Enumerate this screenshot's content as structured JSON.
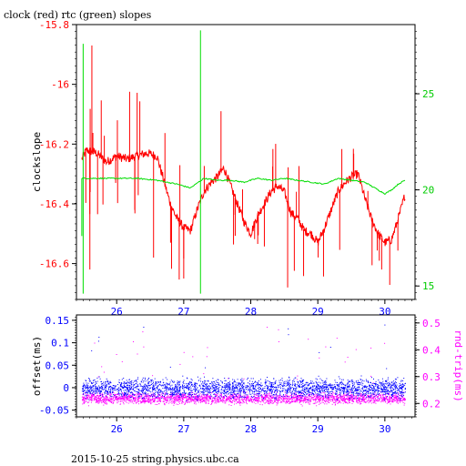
{
  "title": "clock (red) rtc (green) slopes",
  "footer": "2015-10-25 string.physics.ubc.ca",
  "colors": {
    "clock": "#ff0000",
    "rtc": "#00dd00",
    "offset": "#0000ff",
    "rtt": "#ff00ff",
    "axis_left_top": "#ff0000",
    "axis_right_top": "#00cc00",
    "axis_left_bottom": "#0000ff",
    "axis_right_bottom": "#ff00ff",
    "x_ticks": "#0000ff"
  },
  "chart_data": [
    {
      "type": "line",
      "title": "clock (red) rtc (green) slopes",
      "ylabel": "clockslope",
      "xlim": [
        25.4,
        30.45
      ],
      "x_ticks": [
        "26",
        "27",
        "28",
        "29",
        "30"
      ],
      "ylim_left": [
        -16.72,
        -15.8
      ],
      "y_ticks_left": [
        "-15.8",
        "-16",
        "-16.2",
        "-16.4",
        "-16.6"
      ],
      "ylim_right": [
        14.3,
        28.6
      ],
      "y_ticks_right": [
        "15",
        "20",
        "25"
      ],
      "series": [
        {
          "name": "clock",
          "axis": "left",
          "x": [
            25.48,
            25.55,
            25.7,
            25.85,
            26.0,
            26.15,
            26.3,
            26.45,
            26.6,
            26.7,
            26.8,
            26.9,
            27.0,
            27.1,
            27.2,
            27.3,
            27.4,
            27.5,
            27.6,
            27.7,
            27.8,
            27.9,
            28.0,
            28.1,
            28.2,
            28.3,
            28.4,
            28.5,
            28.6,
            28.7,
            28.8,
            28.9,
            29.0,
            29.1,
            29.2,
            29.3,
            29.4,
            29.5,
            29.6,
            29.7,
            29.8,
            29.9,
            30.0,
            30.1,
            30.2,
            30.3
          ],
          "y": [
            -16.25,
            -16.22,
            -16.23,
            -16.26,
            -16.24,
            -16.25,
            -16.24,
            -16.23,
            -16.24,
            -16.32,
            -16.4,
            -16.45,
            -16.48,
            -16.49,
            -16.42,
            -16.36,
            -16.33,
            -16.31,
            -16.28,
            -16.34,
            -16.4,
            -16.46,
            -16.5,
            -16.44,
            -16.4,
            -16.36,
            -16.34,
            -16.36,
            -16.43,
            -16.45,
            -16.49,
            -16.5,
            -16.53,
            -16.48,
            -16.42,
            -16.36,
            -16.33,
            -16.31,
            -16.3,
            -16.38,
            -16.45,
            -16.5,
            -16.53,
            -16.52,
            -16.45,
            -16.37
          ]
        },
        {
          "name": "rtc",
          "axis": "right",
          "x": [
            25.48,
            25.7,
            26.0,
            26.3,
            26.6,
            26.9,
            27.1,
            27.3,
            27.5,
            27.7,
            27.9,
            28.1,
            28.3,
            28.5,
            28.7,
            28.9,
            29.1,
            29.3,
            29.5,
            29.7,
            29.9,
            30.0,
            30.1,
            30.2,
            30.3
          ],
          "y": [
            20.6,
            20.6,
            20.6,
            20.6,
            20.5,
            20.3,
            20.1,
            20.6,
            20.5,
            20.5,
            20.4,
            20.6,
            20.5,
            20.6,
            20.5,
            20.4,
            20.3,
            20.6,
            20.5,
            20.4,
            20.0,
            19.8,
            20.0,
            20.3,
            20.5
          ]
        }
      ]
    },
    {
      "type": "scatter",
      "ylabel_left": "offset(ms)",
      "ylabel_right": "rnd-trip(ms)",
      "xlim": [
        25.4,
        30.45
      ],
      "x_ticks": [
        "26",
        "27",
        "28",
        "29",
        "30"
      ],
      "ylim_left": [
        -0.065,
        0.162
      ],
      "y_ticks_left": [
        "0.15",
        "0.1",
        "0.05",
        "0",
        "-0.05"
      ],
      "ylim_right": [
        0.15,
        0.53
      ],
      "y_ticks_right": [
        "0.5",
        "0.4",
        "0.3",
        "0.2"
      ],
      "series": [
        {
          "name": "offset",
          "axis": "left",
          "center": 0.0,
          "spread": 0.02
        },
        {
          "name": "rnd-trip",
          "axis": "right",
          "center": 0.22,
          "spread": 0.02
        }
      ]
    }
  ]
}
